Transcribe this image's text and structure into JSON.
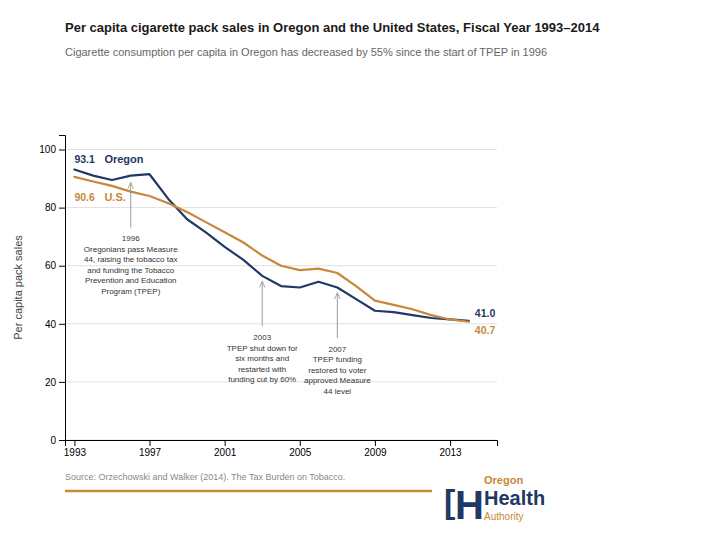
{
  "chart_data": {
    "type": "line",
    "title": "Per capita cigarette pack sales in Oregon and the United States, Fiscal Year 1993–2014",
    "subtitle": "Cigarette consumption per capita in Oregon has decreased by 55% since the start of TPEP in 1996",
    "ylabel": "Per capita pack sales",
    "source": "Source: Orzechowski and Walker (2014). The Tax Burden on Tobacco.",
    "x": [
      1993,
      1994,
      1995,
      1996,
      1997,
      1998,
      1999,
      2000,
      2001,
      2002,
      2003,
      2004,
      2005,
      2006,
      2007,
      2008,
      2009,
      2010,
      2011,
      2012,
      2013,
      2014
    ],
    "series": [
      {
        "name": "Oregon",
        "color": "#1f3864",
        "values": [
          93.1,
          91.0,
          89.5,
          91.0,
          91.5,
          83.0,
          76.0,
          71.5,
          66.5,
          62.0,
          56.5,
          53.0,
          52.5,
          54.5,
          52.5,
          48.5,
          44.5,
          44.0,
          43.0,
          42.0,
          41.5,
          41.0
        ],
        "value_labels": [
          "93.1",
          null,
          null,
          null,
          null,
          null,
          null,
          null,
          null,
          null,
          null,
          null,
          null,
          null,
          null,
          null,
          null,
          null,
          null,
          null,
          null,
          "41.0"
        ]
      },
      {
        "name": "U.S.",
        "color": "#c8873a",
        "values": [
          90.6,
          89.0,
          87.5,
          85.5,
          84.0,
          81.5,
          78.5,
          75.0,
          71.5,
          68.0,
          63.5,
          60.0,
          58.5,
          59.0,
          57.5,
          53.0,
          48.0,
          46.5,
          45.0,
          43.0,
          41.5,
          40.7
        ],
        "value_labels": [
          "90.6",
          null,
          null,
          null,
          null,
          null,
          null,
          null,
          null,
          null,
          null,
          null,
          null,
          null,
          null,
          null,
          null,
          null,
          null,
          null,
          null,
          "40.7"
        ]
      }
    ],
    "xlim": [
      1992.5,
      2015.5
    ],
    "xticks": [
      1993,
      1997,
      2001,
      2005,
      2009,
      2013
    ],
    "ylim": [
      0,
      105
    ],
    "yticks": [
      0,
      20,
      40,
      60,
      80,
      100
    ],
    "grid": true,
    "annotations": [
      {
        "x": 1996,
        "y": 89,
        "text": "1996\nOregonians pass Measure\n44, raising the tobacco tax\nand funding the Tobacco\nPrevention and Education\nProgram (TPEP)"
      },
      {
        "x": 2003,
        "y": 55,
        "text": "2003\nTPEP shut down for\nsix months and\nrestarted with\nfunding cut by 60%"
      },
      {
        "x": 2007,
        "y": 51,
        "text": "2007\nTPEP funding\nrestored to voter\napproved Measure\n44 level"
      }
    ],
    "logo": [
      "[",
      "H",
      "Oregon",
      "Health",
      "Authority"
    ]
  }
}
